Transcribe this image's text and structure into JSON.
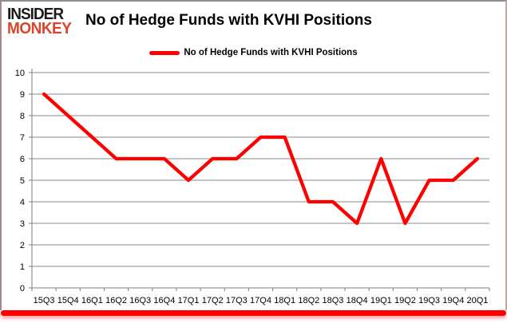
{
  "logo": {
    "line1": "INSIDER",
    "line2": "MONKEY"
  },
  "header": {
    "title": "No of Hedge Funds with KVHI Positions"
  },
  "legend": {
    "label": "No of Hedge Funds with KVHI Positions"
  },
  "colors": {
    "line": "#ff0000",
    "grid": "#8a8a8a",
    "axis": "#7e7e7e",
    "tick_text": "#000000",
    "logo_primary": "#1a1a1a",
    "logo_accent": "#d8462b",
    "bottom_bar": "#ff0000"
  },
  "chart_data": {
    "type": "line",
    "title": "No of Hedge Funds with KVHI Positions",
    "categories": [
      "15Q3",
      "15Q4",
      "16Q1",
      "16Q2",
      "16Q3",
      "16Q4",
      "17Q1",
      "17Q2",
      "17Q3",
      "17Q4",
      "18Q1",
      "18Q2",
      "18Q3",
      "18Q4",
      "19Q1",
      "19Q2",
      "19Q3",
      "19Q4",
      "20Q1"
    ],
    "series": [
      {
        "name": "No of Hedge Funds with KVHI Positions",
        "color": "#ff0000",
        "values": [
          9,
          8,
          7,
          6,
          6,
          6,
          5,
          6,
          6,
          7,
          7,
          4,
          4,
          3,
          6,
          3,
          5,
          5,
          6
        ]
      }
    ],
    "xlabel": "",
    "ylabel": "",
    "ylim": [
      0,
      10
    ],
    "ytick_interval": 1,
    "grid": "horizontal",
    "legend_position": "top"
  }
}
